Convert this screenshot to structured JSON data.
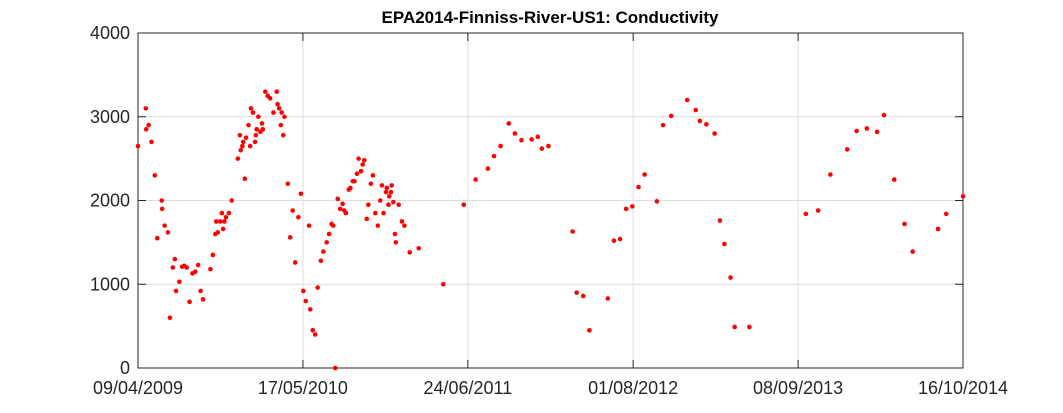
{
  "chart_data": {
    "type": "scatter",
    "title": "EPA2014-Finniss-River-US1: Conductivity",
    "xlabel": "",
    "ylabel": "",
    "x_range": [
      "09/04/2009",
      "16/10/2014"
    ],
    "ylim": [
      0,
      4000
    ],
    "x_ticks": [
      "09/04/2009",
      "17/05/2010",
      "24/06/2011",
      "01/08/2012",
      "08/09/2013",
      "16/10/2014"
    ],
    "y_ticks": [
      0,
      1000,
      2000,
      3000,
      4000
    ],
    "grid": true,
    "legend": "none",
    "marker_color": "#ff0000",
    "series": [
      {
        "points": [
          [
            "09/04/2009",
            2650
          ],
          [
            "28/04/2009",
            3100
          ],
          [
            "29/04/2009",
            2850
          ],
          [
            "05/05/2009",
            2900
          ],
          [
            "12/05/2009",
            2700
          ],
          [
            "20/05/2009",
            2300
          ],
          [
            "26/05/2009",
            1550
          ],
          [
            "06/06/2009",
            2000
          ],
          [
            "07/06/2009",
            1900
          ],
          [
            "13/06/2009",
            1700
          ],
          [
            "21/06/2009",
            1620
          ],
          [
            "26/06/2009",
            600
          ],
          [
            "03/07/2009",
            1200
          ],
          [
            "08/07/2009",
            1300
          ],
          [
            "11/07/2009",
            920
          ],
          [
            "19/07/2009",
            1030
          ],
          [
            "26/07/2009",
            1210
          ],
          [
            "31/07/2009",
            1220
          ],
          [
            "06/08/2009",
            1200
          ],
          [
            "13/08/2009",
            790
          ],
          [
            "20/08/2009",
            1130
          ],
          [
            "27/08/2009",
            1150
          ],
          [
            "03/09/2009",
            1230
          ],
          [
            "09/09/2009",
            920
          ],
          [
            "15/09/2009",
            820
          ],
          [
            "03/10/2009",
            1180
          ],
          [
            "09/10/2009",
            1350
          ],
          [
            "15/10/2009",
            1600
          ],
          [
            "17/10/2009",
            1750
          ],
          [
            "21/10/2009",
            1620
          ],
          [
            "27/10/2009",
            1750
          ],
          [
            "31/10/2009",
            1850
          ],
          [
            "03/11/2009",
            1660
          ],
          [
            "06/11/2009",
            1750
          ],
          [
            "10/11/2009",
            1800
          ],
          [
            "17/11/2009",
            1850
          ],
          [
            "24/11/2009",
            2000
          ],
          [
            "09/12/2009",
            2500
          ],
          [
            "14/12/2009",
            2780
          ],
          [
            "16/12/2009",
            2600
          ],
          [
            "20/12/2009",
            2650
          ],
          [
            "22/12/2009",
            2700
          ],
          [
            "26/12/2009",
            2260
          ],
          [
            "29/12/2009",
            2750
          ],
          [
            "04/01/2010",
            2900
          ],
          [
            "08/01/2010",
            2650
          ],
          [
            "10/01/2010",
            3100
          ],
          [
            "15/01/2010",
            3050
          ],
          [
            "20/01/2010",
            2700
          ],
          [
            "22/01/2010",
            2780
          ],
          [
            "24/01/2010",
            2850
          ],
          [
            "28/01/2010",
            3000
          ],
          [
            "02/02/2010",
            2820
          ],
          [
            "06/02/2010",
            2920
          ],
          [
            "08/02/2010",
            2850
          ],
          [
            "14/02/2010",
            3300
          ],
          [
            "20/02/2010",
            3250
          ],
          [
            "26/02/2010",
            3220
          ],
          [
            "06/03/2010",
            3050
          ],
          [
            "14/03/2010",
            3300
          ],
          [
            "16/03/2010",
            3150
          ],
          [
            "20/03/2010",
            3100
          ],
          [
            "24/03/2010",
            2900
          ],
          [
            "26/03/2010",
            3050
          ],
          [
            "30/03/2010",
            2780
          ],
          [
            "02/04/2010",
            3000
          ],
          [
            "10/04/2010",
            2200
          ],
          [
            "16/04/2010",
            1560
          ],
          [
            "22/04/2010",
            1880
          ],
          [
            "28/04/2010",
            1260
          ],
          [
            "06/05/2010",
            1800
          ],
          [
            "12/05/2010",
            2080
          ],
          [
            "18/05/2010",
            920
          ],
          [
            "24/05/2010",
            800
          ],
          [
            "01/06/2010",
            1700
          ],
          [
            "04/06/2010",
            700
          ],
          [
            "10/06/2010",
            450
          ],
          [
            "16/06/2010",
            400
          ],
          [
            "22/06/2010",
            960
          ],
          [
            "30/06/2010",
            1280
          ],
          [
            "06/07/2010",
            1390
          ],
          [
            "14/07/2010",
            1500
          ],
          [
            "20/07/2010",
            1600
          ],
          [
            "26/07/2010",
            1720
          ],
          [
            "30/07/2010",
            1700
          ],
          [
            "04/08/2010",
            0
          ],
          [
            "10/08/2010",
            2020
          ],
          [
            "16/08/2010",
            1900
          ],
          [
            "22/08/2010",
            1960
          ],
          [
            "26/08/2010",
            1880
          ],
          [
            "30/08/2010",
            1850
          ],
          [
            "06/09/2010",
            2130
          ],
          [
            "10/09/2010",
            2150
          ],
          [
            "16/09/2010",
            2230
          ],
          [
            "20/09/2010",
            2230
          ],
          [
            "26/09/2010",
            2320
          ],
          [
            "30/09/2010",
            2500
          ],
          [
            "06/10/2010",
            2350
          ],
          [
            "10/10/2010",
            2430
          ],
          [
            "14/10/2010",
            2480
          ],
          [
            "20/10/2010",
            1780
          ],
          [
            "24/10/2010",
            1950
          ],
          [
            "30/10/2010",
            2200
          ],
          [
            "04/11/2010",
            2300
          ],
          [
            "10/11/2010",
            1850
          ],
          [
            "16/11/2010",
            1700
          ],
          [
            "22/11/2010",
            2000
          ],
          [
            "26/11/2010",
            2180
          ],
          [
            "30/11/2010",
            1850
          ],
          [
            "06/12/2010",
            2100
          ],
          [
            "08/12/2010",
            2150
          ],
          [
            "12/12/2010",
            1950
          ],
          [
            "14/12/2010",
            2050
          ],
          [
            "18/12/2010",
            2100
          ],
          [
            "20/12/2010",
            2180
          ],
          [
            "24/12/2010",
            1980
          ],
          [
            "28/12/2010",
            1600
          ],
          [
            "30/12/2010",
            1500
          ],
          [
            "06/01/2011",
            1950
          ],
          [
            "14/01/2011",
            1750
          ],
          [
            "20/01/2011",
            1700
          ],
          [
            "02/02/2011",
            1380
          ],
          [
            "24/02/2011",
            1430
          ],
          [
            "25/04/2011",
            1000
          ],
          [
            "14/06/2011",
            1950
          ],
          [
            "13/07/2011",
            2250
          ],
          [
            "12/08/2011",
            2380
          ],
          [
            "27/08/2011",
            2530
          ],
          [
            "12/09/2011",
            2650
          ],
          [
            "02/10/2011",
            2920
          ],
          [
            "17/10/2011",
            2800
          ],
          [
            "02/11/2011",
            2720
          ],
          [
            "27/11/2011",
            2730
          ],
          [
            "12/12/2011",
            2760
          ],
          [
            "22/12/2011",
            2620
          ],
          [
            "07/01/2012",
            2650
          ],
          [
            "06/03/2012",
            1630
          ],
          [
            "16/03/2012",
            900
          ],
          [
            "01/04/2012",
            860
          ],
          [
            "16/04/2012",
            450
          ],
          [
            "31/05/2012",
            830
          ],
          [
            "15/06/2012",
            1520
          ],
          [
            "30/06/2012",
            1540
          ],
          [
            "15/07/2012",
            1900
          ],
          [
            "30/07/2012",
            1930
          ],
          [
            "14/08/2012",
            2160
          ],
          [
            "29/08/2012",
            2310
          ],
          [
            "28/09/2012",
            1990
          ],
          [
            "13/10/2012",
            2900
          ],
          [
            "02/11/2012",
            3010
          ],
          [
            "11/12/2012",
            3200
          ],
          [
            "01/01/2013",
            3080
          ],
          [
            "11/01/2013",
            2950
          ],
          [
            "27/01/2013",
            2910
          ],
          [
            "16/02/2013",
            2800
          ],
          [
            "01/03/2013",
            1760
          ],
          [
            "12/03/2013",
            1480
          ],
          [
            "27/03/2013",
            1080
          ],
          [
            "06/04/2013",
            490
          ],
          [
            "12/05/2013",
            490
          ],
          [
            "27/09/2013",
            1840
          ],
          [
            "27/10/2013",
            1880
          ],
          [
            "26/11/2013",
            2310
          ],
          [
            "06/01/2014",
            2610
          ],
          [
            "29/01/2014",
            2830
          ],
          [
            "23/02/2014",
            2860
          ],
          [
            "20/03/2014",
            2820
          ],
          [
            "06/04/2014",
            3020
          ],
          [
            "01/05/2014",
            2250
          ],
          [
            "26/05/2014",
            1720
          ],
          [
            "15/06/2014",
            1390
          ],
          [
            "16/08/2014",
            1660
          ],
          [
            "05/09/2014",
            1840
          ],
          [
            "16/10/2014",
            2050
          ]
        ]
      }
    ]
  }
}
